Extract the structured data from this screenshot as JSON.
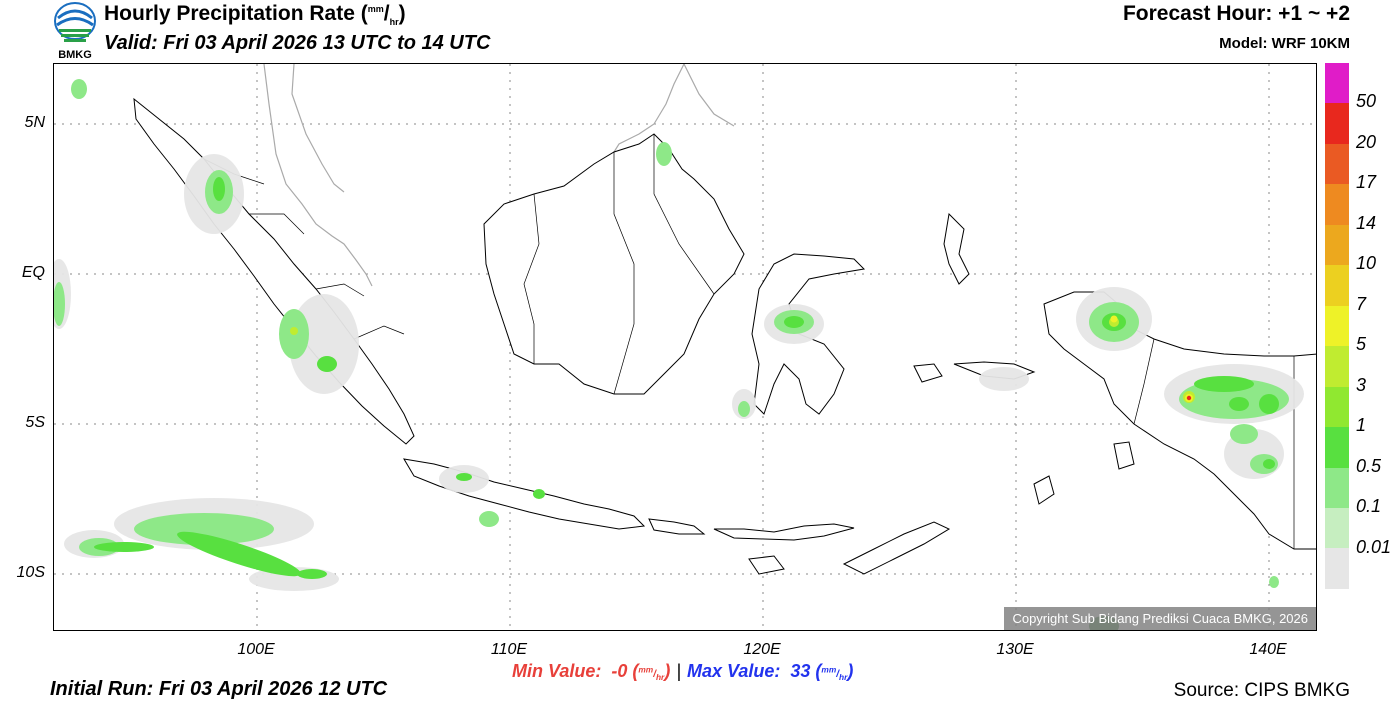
{
  "header": {
    "title_main": "Hourly Precipitation Rate (",
    "title_unit_top": "mm",
    "title_unit_slash": "/",
    "title_unit_bottom": "hr",
    "title_close": ")",
    "valid": "Valid: Fri 03 April 2026 13 UTC to 14 UTC",
    "forecast_hour": "Forecast Hour: +1 ~ +2",
    "model": "Model: WRF 10KM",
    "logo_text": "BMKG"
  },
  "map": {
    "lat_labels": [
      "5N",
      "EQ",
      "5S",
      "10S"
    ],
    "lon_labels": [
      "100E",
      "110E",
      "120E",
      "130E",
      "140E"
    ],
    "copyright": "Copyright Sub Bidang Prediksi Cuaca BMKG, 2026"
  },
  "legend": {
    "labels": [
      "50",
      "20",
      "17",
      "14",
      "10",
      "7",
      "5",
      "3",
      "1",
      "0.5",
      "0.1",
      "0.01"
    ],
    "colors": [
      "#e01cc8",
      "#e8281e",
      "#ea5a23",
      "#ee8a20",
      "#eca81e",
      "#ecd020",
      "#eef228",
      "#c0ec30",
      "#90e830",
      "#58e040",
      "#8ee888",
      "#c6eec0",
      "#e6e6e6"
    ]
  },
  "footer": {
    "min_label": "Min Value:",
    "min_value": "-0",
    "max_label": "Max Value:",
    "max_value": "33",
    "unit_top": "mm",
    "unit_bottom": "hr",
    "separator": "|",
    "initial_run": "Initial Run: Fri 03 April 2026 12 UTC",
    "source": "Source: CIPS BMKG"
  },
  "colors": {
    "min_text": "#e8403a",
    "max_text": "#2233ee"
  }
}
